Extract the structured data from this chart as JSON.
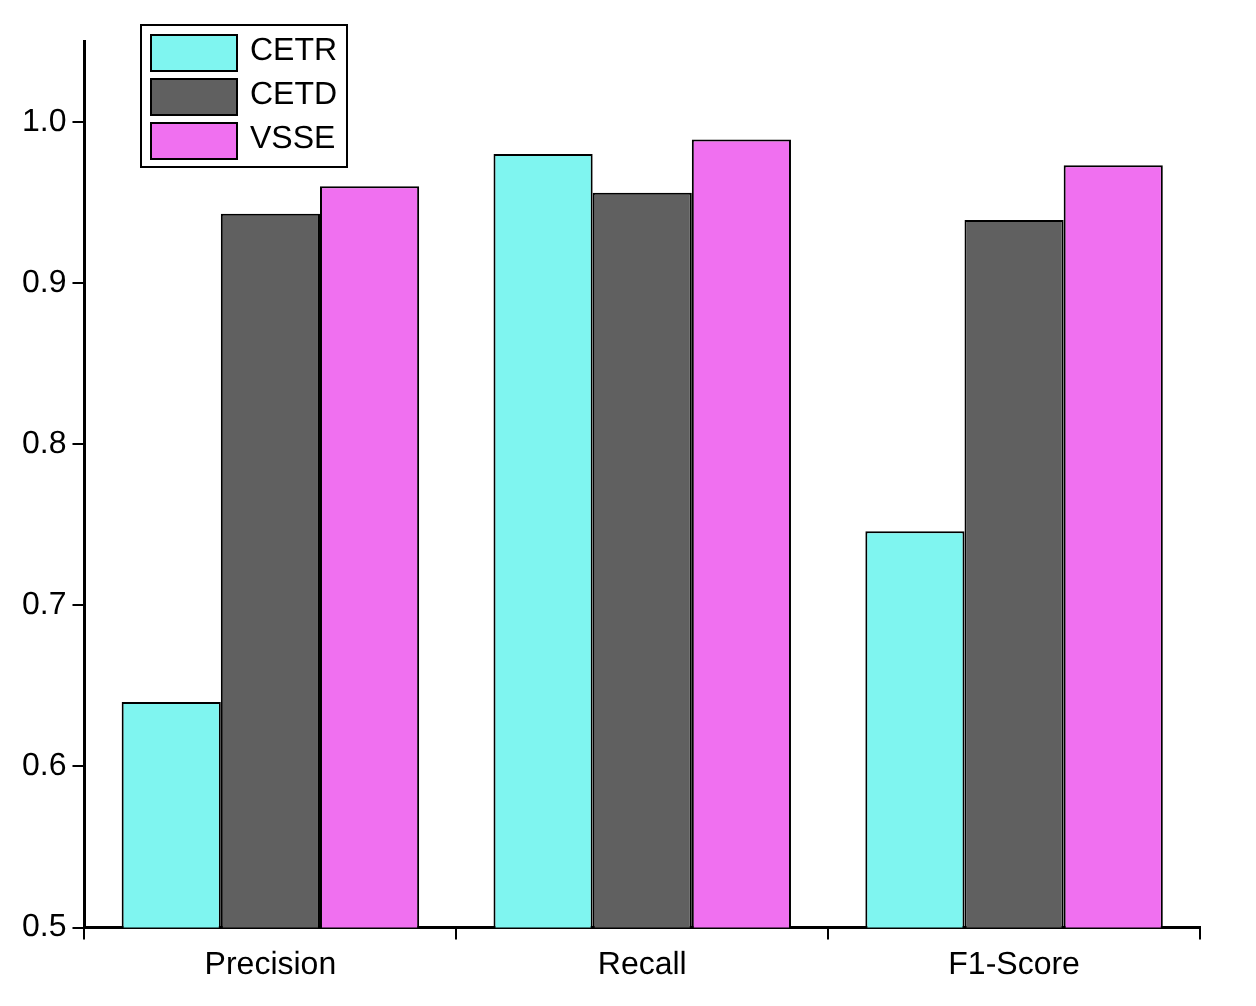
{
  "chart_data": {
    "type": "bar",
    "categories": [
      "Precision",
      "Recall",
      "F1-Score"
    ],
    "series": [
      {
        "name": "CETR",
        "color": "#7ff5f0",
        "values": [
          0.64,
          0.98,
          0.746
        ]
      },
      {
        "name": "CETD",
        "color": "#606060",
        "values": [
          0.943,
          0.956,
          0.939
        ]
      },
      {
        "name": "VSSE",
        "color": "#f070f0",
        "values": [
          0.96,
          0.989,
          0.973
        ]
      }
    ],
    "ylim": [
      0.5,
      1.05
    ],
    "yticks": [
      0.5,
      0.6,
      0.7,
      0.8,
      0.9,
      {
        "value": 1,
        "label": "1.0"
      }
    ],
    "grid": false,
    "legend": "top left"
  }
}
